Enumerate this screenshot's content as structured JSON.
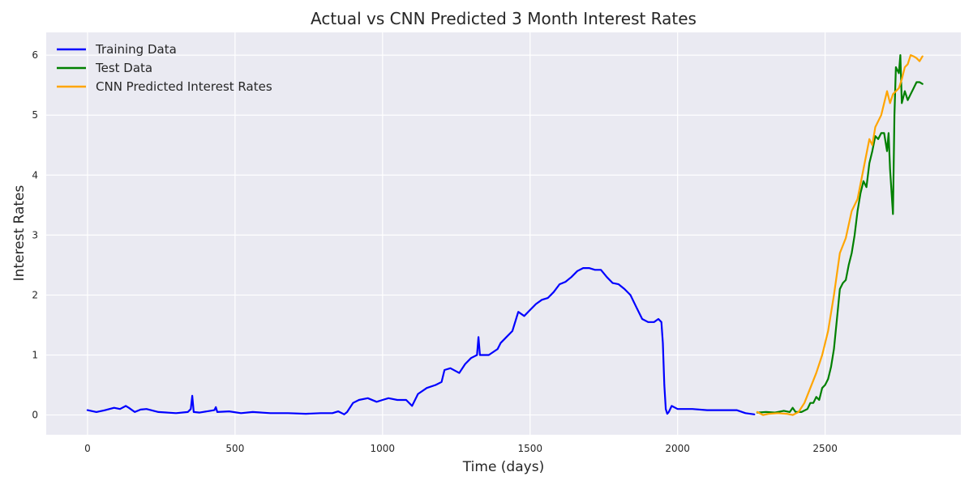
{
  "chart_data": {
    "type": "line",
    "title": "Actual vs CNN Predicted 3 Month Interest Rates",
    "xlabel": "Time (days)",
    "ylabel": "Interest Rates",
    "xlim": [
      -140,
      2960
    ],
    "ylim": [
      -0.33,
      6.38
    ],
    "xticks": [
      0,
      500,
      1000,
      1500,
      2000,
      2500
    ],
    "yticks": [
      0,
      1,
      2,
      3,
      4,
      5,
      6
    ],
    "grid": true,
    "legend_position": "top-left",
    "series": [
      {
        "name": "Training Data",
        "color": "#0000ff",
        "x": [
          0,
          30,
          60,
          90,
          110,
          130,
          140,
          160,
          180,
          200,
          240,
          300,
          340,
          350,
          355,
          360,
          380,
          430,
          435,
          440,
          480,
          520,
          560,
          620,
          680,
          740,
          790,
          830,
          850,
          870,
          880,
          900,
          920,
          950,
          980,
          1000,
          1020,
          1050,
          1080,
          1100,
          1120,
          1150,
          1180,
          1200,
          1210,
          1230,
          1260,
          1280,
          1300,
          1320,
          1325,
          1330,
          1360,
          1390,
          1400,
          1420,
          1440,
          1460,
          1480,
          1500,
          1520,
          1540,
          1560,
          1580,
          1600,
          1620,
          1640,
          1660,
          1680,
          1700,
          1720,
          1740,
          1760,
          1780,
          1800,
          1820,
          1840,
          1860,
          1880,
          1900,
          1920,
          1935,
          1945,
          1950,
          1955,
          1960,
          1965,
          1970,
          1980,
          2000,
          2050,
          2100,
          2150,
          2200,
          2230,
          2260
        ],
        "y": [
          0.08,
          0.05,
          0.08,
          0.12,
          0.1,
          0.15,
          0.12,
          0.05,
          0.09,
          0.1,
          0.05,
          0.03,
          0.05,
          0.1,
          0.32,
          0.05,
          0.04,
          0.08,
          0.13,
          0.05,
          0.06,
          0.03,
          0.05,
          0.03,
          0.03,
          0.02,
          0.03,
          0.03,
          0.06,
          0.01,
          0.05,
          0.2,
          0.25,
          0.28,
          0.22,
          0.25,
          0.28,
          0.25,
          0.25,
          0.15,
          0.35,
          0.45,
          0.5,
          0.55,
          0.75,
          0.78,
          0.7,
          0.85,
          0.95,
          1.0,
          1.3,
          1.0,
          1.0,
          1.1,
          1.2,
          1.3,
          1.4,
          1.72,
          1.65,
          1.75,
          1.85,
          1.92,
          1.95,
          2.05,
          2.18,
          2.22,
          2.3,
          2.4,
          2.45,
          2.45,
          2.42,
          2.42,
          2.3,
          2.2,
          2.18,
          2.1,
          2.0,
          1.8,
          1.6,
          1.55,
          1.55,
          1.6,
          1.55,
          1.2,
          0.5,
          0.1,
          0.02,
          0.05,
          0.15,
          0.1,
          0.1,
          0.08,
          0.08,
          0.08,
          0.03,
          0.01
        ]
      },
      {
        "name": "Test Data",
        "color": "#008000",
        "x": [
          2270,
          2300,
          2330,
          2360,
          2380,
          2390,
          2400,
          2420,
          2440,
          2450,
          2460,
          2470,
          2480,
          2490,
          2500,
          2510,
          2520,
          2530,
          2540,
          2550,
          2560,
          2570,
          2580,
          2590,
          2600,
          2610,
          2620,
          2630,
          2640,
          2650,
          2660,
          2670,
          2680,
          2690,
          2700,
          2710,
          2715,
          2720,
          2730,
          2735,
          2740,
          2750,
          2755,
          2760,
          2770,
          2780,
          2790,
          2800,
          2810,
          2820,
          2830
        ],
        "y": [
          0.04,
          0.05,
          0.04,
          0.07,
          0.05,
          0.12,
          0.05,
          0.05,
          0.1,
          0.2,
          0.2,
          0.3,
          0.25,
          0.45,
          0.5,
          0.6,
          0.8,
          1.1,
          1.6,
          2.1,
          2.2,
          2.25,
          2.5,
          2.7,
          3.0,
          3.4,
          3.7,
          3.9,
          3.8,
          4.2,
          4.4,
          4.65,
          4.6,
          4.7,
          4.7,
          4.4,
          4.7,
          4.1,
          3.35,
          5.0,
          5.8,
          5.7,
          6.0,
          5.2,
          5.4,
          5.25,
          5.35,
          5.45,
          5.55,
          5.55,
          5.52
        ]
      },
      {
        "name": "CNN Predicted Interest Rates",
        "color": "#ffa500",
        "x": [
          2270,
          2290,
          2310,
          2340,
          2370,
          2390,
          2410,
          2430,
          2450,
          2470,
          2490,
          2510,
          2530,
          2550,
          2570,
          2590,
          2610,
          2630,
          2650,
          2660,
          2670,
          2690,
          2710,
          2720,
          2730,
          2750,
          2760,
          2770,
          2780,
          2790,
          2800,
          2810,
          2820,
          2830
        ],
        "y": [
          0.05,
          0.0,
          0.02,
          0.03,
          0.02,
          0.0,
          0.05,
          0.2,
          0.45,
          0.7,
          1.0,
          1.4,
          2.0,
          2.7,
          2.95,
          3.4,
          3.6,
          4.1,
          4.6,
          4.5,
          4.8,
          5.0,
          5.4,
          5.2,
          5.35,
          5.45,
          5.6,
          5.8,
          5.85,
          6.0,
          5.98,
          5.95,
          5.9,
          5.98
        ]
      }
    ]
  }
}
